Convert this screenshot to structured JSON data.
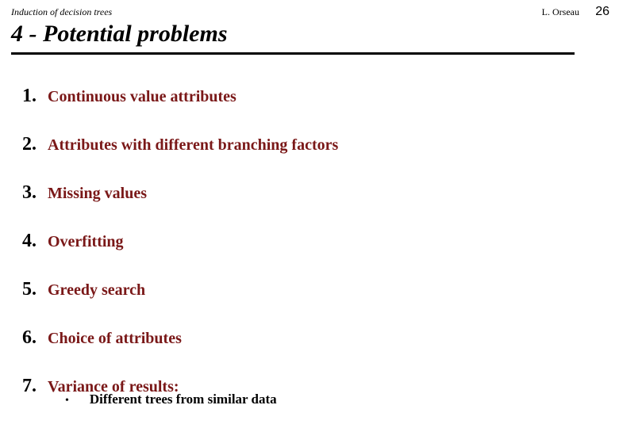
{
  "header": {
    "left": "Induction of decision trees",
    "right": "L. Orseau",
    "page": "26"
  },
  "title": "4 - Potential problems",
  "items": [
    {
      "n": "1.",
      "text": "Continuous value attributes"
    },
    {
      "n": "2.",
      "text": "Attributes with different branching factors"
    },
    {
      "n": "3.",
      "text": "Missing values"
    },
    {
      "n": "4.",
      "text": "Overfitting"
    },
    {
      "n": "5.",
      "text": "Greedy search"
    },
    {
      "n": "6.",
      "text": "Choice of attributes"
    },
    {
      "n": "7.",
      "text": "Variance of results:"
    }
  ],
  "subitem": {
    "bullet": "•",
    "text": "Different trees from similar data"
  },
  "style": {
    "item_color": "#7a1818",
    "num_color": "#000000",
    "bg": "#ffffff",
    "title_fontsize": 30,
    "num_fontsize": 24,
    "item_fontsize": 20,
    "sub_fontsize": 17,
    "header_fontsize": 12,
    "page_fontsize": 16,
    "rule_thickness": 3,
    "item_spacing": 34
  }
}
